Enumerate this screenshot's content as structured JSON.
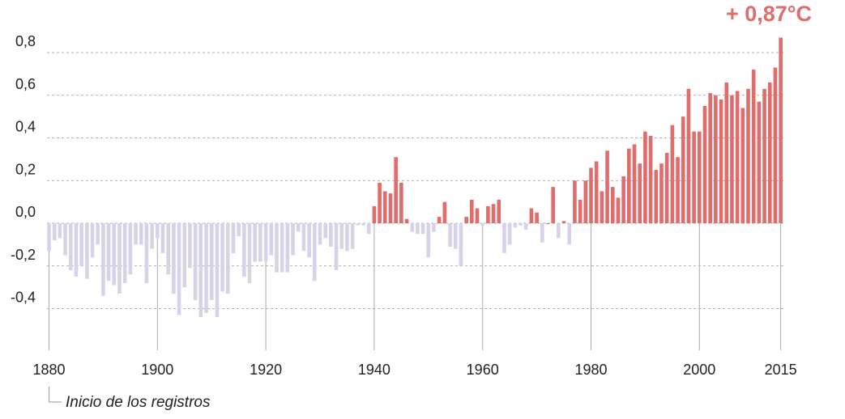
{
  "colors": {
    "positive": "#e06c6c",
    "negative": "#d6d2e8",
    "callout": "#e06c6c",
    "grid": "#999999",
    "axis": "#aaaaaa"
  },
  "annotations": {
    "callout": "+ 0,87°C",
    "start_note": "Inicio de los registros"
  },
  "chart_data": {
    "type": "bar",
    "title": "",
    "xlabel": "",
    "ylabel": "",
    "ylim": [
      -0.55,
      0.9
    ],
    "grid": true,
    "y_ticks": [
      {
        "value": 0.8,
        "label": "0,8"
      },
      {
        "value": 0.6,
        "label": "0,6"
      },
      {
        "value": 0.4,
        "label": "0,4"
      },
      {
        "value": 0.2,
        "label": "0,2"
      },
      {
        "value": 0.0,
        "label": "0,0"
      },
      {
        "value": -0.2,
        "label": "-0,2"
      },
      {
        "value": -0.4,
        "label": "-0,4"
      }
    ],
    "x_ticks": [
      {
        "value": 1880,
        "label": "1880"
      },
      {
        "value": 1900,
        "label": "1900"
      },
      {
        "value": 1920,
        "label": "1920"
      },
      {
        "value": 1940,
        "label": "1940"
      },
      {
        "value": 1960,
        "label": "1960"
      },
      {
        "value": 1980,
        "label": "1980"
      },
      {
        "value": 2000,
        "label": "2000"
      },
      {
        "value": 2015,
        "label": "2015"
      }
    ],
    "first_year": 1880,
    "categories": [
      1880,
      1881,
      1882,
      1883,
      1884,
      1885,
      1886,
      1887,
      1888,
      1889,
      1890,
      1891,
      1892,
      1893,
      1894,
      1895,
      1896,
      1897,
      1898,
      1899,
      1900,
      1901,
      1902,
      1903,
      1904,
      1905,
      1906,
      1907,
      1908,
      1909,
      1910,
      1911,
      1912,
      1913,
      1914,
      1915,
      1916,
      1917,
      1918,
      1919,
      1920,
      1921,
      1922,
      1923,
      1924,
      1925,
      1926,
      1927,
      1928,
      1929,
      1930,
      1931,
      1932,
      1933,
      1934,
      1935,
      1936,
      1937,
      1938,
      1939,
      1940,
      1941,
      1942,
      1943,
      1944,
      1945,
      1946,
      1947,
      1948,
      1949,
      1950,
      1951,
      1952,
      1953,
      1954,
      1955,
      1956,
      1957,
      1958,
      1959,
      1960,
      1961,
      1962,
      1963,
      1964,
      1965,
      1966,
      1967,
      1968,
      1969,
      1970,
      1971,
      1972,
      1973,
      1974,
      1975,
      1976,
      1977,
      1978,
      1979,
      1980,
      1981,
      1982,
      1983,
      1984,
      1985,
      1986,
      1987,
      1988,
      1989,
      1990,
      1991,
      1992,
      1993,
      1994,
      1995,
      1996,
      1997,
      1998,
      1999,
      2000,
      2001,
      2002,
      2003,
      2004,
      2005,
      2006,
      2007,
      2008,
      2009,
      2010,
      2011,
      2012,
      2013,
      2014,
      2015
    ],
    "values": [
      -0.13,
      -0.08,
      -0.07,
      -0.15,
      -0.22,
      -0.25,
      -0.2,
      -0.26,
      -0.16,
      -0.1,
      -0.34,
      -0.27,
      -0.29,
      -0.33,
      -0.28,
      -0.24,
      -0.1,
      -0.1,
      -0.28,
      -0.12,
      -0.07,
      -0.14,
      -0.24,
      -0.33,
      -0.43,
      -0.3,
      -0.21,
      -0.36,
      -0.44,
      -0.42,
      -0.36,
      -0.44,
      -0.32,
      -0.33,
      -0.14,
      -0.06,
      -0.25,
      -0.28,
      -0.18,
      -0.18,
      -0.18,
      -0.15,
      -0.23,
      -0.23,
      -0.23,
      -0.15,
      -0.04,
      -0.13,
      -0.16,
      -0.27,
      -0.1,
      -0.07,
      -0.11,
      -0.22,
      -0.12,
      -0.13,
      -0.12,
      -0.01,
      -0.01,
      -0.05,
      0.08,
      0.19,
      0.15,
      0.14,
      0.31,
      0.19,
      0.02,
      -0.04,
      -0.05,
      -0.05,
      -0.16,
      -0.04,
      0.03,
      0.1,
      -0.11,
      -0.12,
      -0.2,
      0.03,
      0.11,
      0.07,
      -0.01,
      0.08,
      0.09,
      0.11,
      -0.14,
      -0.1,
      -0.02,
      -0.01,
      -0.03,
      0.07,
      0.05,
      -0.09,
      0.0,
      0.17,
      -0.07,
      0.01,
      -0.1,
      0.2,
      0.11,
      0.2,
      0.26,
      0.29,
      0.15,
      0.34,
      0.17,
      0.12,
      0.22,
      0.35,
      0.37,
      0.28,
      0.43,
      0.41,
      0.25,
      0.28,
      0.33,
      0.46,
      0.31,
      0.5,
      0.63,
      0.43,
      0.43,
      0.55,
      0.61,
      0.6,
      0.58,
      0.66,
      0.6,
      0.62,
      0.54,
      0.63,
      0.72,
      0.57,
      0.63,
      0.66,
      0.73,
      0.87
    ]
  }
}
